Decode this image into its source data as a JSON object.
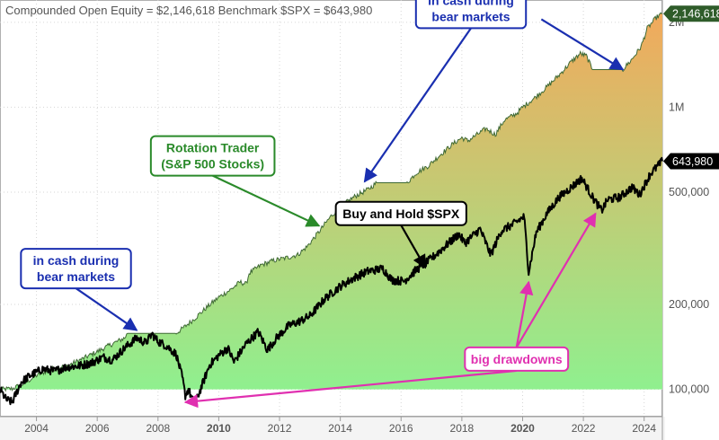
{
  "header": {
    "title": "Compounded Open Equity = $2,146,618  Benchmark $SPX = $643,980"
  },
  "chart_data": {
    "type": "area",
    "scale": "log",
    "grid": true,
    "title": "Compounded Open Equity = $2,146,618  Benchmark $SPX = $643,980",
    "xlabel": "",
    "ylabel": "",
    "xlim": [
      2002.8,
      2024.6
    ],
    "ylim": [
      80000,
      2400000
    ],
    "x_ticks": [
      {
        "value": 2004,
        "label": "2004",
        "bold": false
      },
      {
        "value": 2006,
        "label": "2006",
        "bold": false
      },
      {
        "value": 2008,
        "label": "2008",
        "bold": false
      },
      {
        "value": 2010,
        "label": "2010",
        "bold": true
      },
      {
        "value": 2012,
        "label": "2012",
        "bold": false
      },
      {
        "value": 2014,
        "label": "2014",
        "bold": false
      },
      {
        "value": 2016,
        "label": "2016",
        "bold": false
      },
      {
        "value": 2018,
        "label": "2018",
        "bold": false
      },
      {
        "value": 2020,
        "label": "2020",
        "bold": true
      },
      {
        "value": 2022,
        "label": "2022",
        "bold": false
      },
      {
        "value": 2024,
        "label": "2024",
        "bold": false
      }
    ],
    "y_ticks": [
      {
        "value": 100000,
        "label": "100,000"
      },
      {
        "value": 200000,
        "label": "200,000"
      },
      {
        "value": 500000,
        "label": "500,000"
      },
      {
        "value": 1000000,
        "label": "1M"
      },
      {
        "value": 2000000,
        "label": "2M"
      }
    ],
    "value_flags": [
      {
        "series": "equity",
        "value": 2146618,
        "label": "2,146,618",
        "bg": "#2f5c2a",
        "fg": "#ffffff"
      },
      {
        "series": "benchmark",
        "value": 643980,
        "label": "643,980",
        "bg": "#000000",
        "fg": "#ffffff"
      }
    ],
    "series": [
      {
        "id": "equity",
        "fill_top": "#f2a95c",
        "fill_bottom": "#8ff08f",
        "line_color": "#3f6a35",
        "baseline": 100000,
        "points": [
          [
            2002.8,
            100000
          ],
          [
            2003.2,
            100500
          ],
          [
            2003.6,
            105000
          ],
          [
            2004.0,
            112000
          ],
          [
            2004.5,
            118000
          ],
          [
            2005.0,
            121000
          ],
          [
            2005.5,
            128000
          ],
          [
            2006.0,
            136000
          ],
          [
            2006.5,
            145000
          ],
          [
            2006.9,
            152000
          ],
          [
            2007.0,
            158000
          ],
          [
            2008.6,
            158000
          ],
          [
            2008.8,
            164000
          ],
          [
            2009.2,
            178000
          ],
          [
            2009.6,
            195000
          ],
          [
            2010.0,
            212000
          ],
          [
            2010.4,
            226000
          ],
          [
            2010.7,
            240000
          ],
          [
            2010.9,
            236000
          ],
          [
            2011.0,
            258000
          ],
          [
            2011.4,
            276000
          ],
          [
            2011.8,
            286000
          ],
          [
            2012.2,
            292000
          ],
          [
            2012.6,
            300000
          ],
          [
            2012.9,
            320000
          ],
          [
            2013.3,
            362000
          ],
          [
            2013.7,
            412000
          ],
          [
            2014.1,
            452000
          ],
          [
            2014.5,
            485000
          ],
          [
            2014.9,
            510000
          ],
          [
            2015.2,
            540000
          ],
          [
            2015.4,
            540000
          ],
          [
            2016.2,
            540000
          ],
          [
            2016.5,
            585000
          ],
          [
            2016.9,
            620000
          ],
          [
            2017.3,
            680000
          ],
          [
            2017.7,
            740000
          ],
          [
            2018.0,
            780000
          ],
          [
            2018.2,
            760000
          ],
          [
            2018.5,
            800000
          ],
          [
            2018.8,
            840000
          ],
          [
            2019.1,
            800000
          ],
          [
            2019.4,
            900000
          ],
          [
            2019.8,
            950000
          ],
          [
            2020.0,
            1000000
          ],
          [
            2020.4,
            1080000
          ],
          [
            2020.8,
            1180000
          ],
          [
            2021.2,
            1300000
          ],
          [
            2021.6,
            1450000
          ],
          [
            2021.9,
            1550000
          ],
          [
            2022.1,
            1520000
          ],
          [
            2022.3,
            1360000
          ],
          [
            2023.3,
            1360000
          ],
          [
            2023.6,
            1480000
          ],
          [
            2023.9,
            1640000
          ],
          [
            2024.1,
            1900000
          ],
          [
            2024.4,
            2080000
          ],
          [
            2024.6,
            2146618
          ]
        ]
      },
      {
        "id": "benchmark",
        "line_color": "#000000",
        "points": [
          [
            2002.8,
            100000
          ],
          [
            2003.0,
            92000
          ],
          [
            2003.2,
            90000
          ],
          [
            2003.5,
            106000
          ],
          [
            2003.8,
            112000
          ],
          [
            2004.2,
            118000
          ],
          [
            2004.6,
            116000
          ],
          [
            2005.0,
            120000
          ],
          [
            2005.4,
            121000
          ],
          [
            2005.8,
            124000
          ],
          [
            2006.2,
            130000
          ],
          [
            2006.5,
            127000
          ],
          [
            2006.9,
            140000
          ],
          [
            2007.3,
            152000
          ],
          [
            2007.6,
            146000
          ],
          [
            2007.8,
            157000
          ],
          [
            2008.0,
            148000
          ],
          [
            2008.3,
            142000
          ],
          [
            2008.6,
            133000
          ],
          [
            2008.8,
            110000
          ],
          [
            2008.9,
            95000
          ],
          [
            2009.0,
            100000
          ],
          [
            2009.2,
            88000
          ],
          [
            2009.4,
            100000
          ],
          [
            2009.7,
            122000
          ],
          [
            2010.0,
            132000
          ],
          [
            2010.3,
            140000
          ],
          [
            2010.5,
            125000
          ],
          [
            2010.9,
            145000
          ],
          [
            2011.3,
            160000
          ],
          [
            2011.6,
            138000
          ],
          [
            2011.9,
            152000
          ],
          [
            2012.3,
            168000
          ],
          [
            2012.7,
            175000
          ],
          [
            2013.0,
            182000
          ],
          [
            2013.5,
            210000
          ],
          [
            2014.0,
            232000
          ],
          [
            2014.5,
            250000
          ],
          [
            2014.9,
            262000
          ],
          [
            2015.4,
            268000
          ],
          [
            2015.7,
            244000
          ],
          [
            2016.1,
            242000
          ],
          [
            2016.5,
            265000
          ],
          [
            2016.9,
            285000
          ],
          [
            2017.4,
            318000
          ],
          [
            2017.9,
            355000
          ],
          [
            2018.1,
            330000
          ],
          [
            2018.6,
            370000
          ],
          [
            2018.95,
            300000
          ],
          [
            2019.3,
            365000
          ],
          [
            2019.7,
            385000
          ],
          [
            2020.05,
            410000
          ],
          [
            2020.2,
            260000
          ],
          [
            2020.45,
            360000
          ],
          [
            2020.8,
            420000
          ],
          [
            2021.2,
            480000
          ],
          [
            2021.6,
            520000
          ],
          [
            2021.95,
            560000
          ],
          [
            2022.3,
            480000
          ],
          [
            2022.6,
            430000
          ],
          [
            2022.8,
            470000
          ],
          [
            2023.2,
            480000
          ],
          [
            2023.6,
            520000
          ],
          [
            2023.85,
            490000
          ],
          [
            2024.2,
            580000
          ],
          [
            2024.6,
            643980
          ]
        ]
      }
    ],
    "annotations": [
      {
        "text": [
          "in cash during",
          "bear markets"
        ],
        "border": "#1a2fb0",
        "color": "#1a2fb0",
        "box": {
          "x": 2018.3,
          "y": 2240000
        },
        "arrow_to": {
          "x": 2014.8,
          "y": 545000
        },
        "arrow_color": "#1a2fb0"
      },
      {
        "text": [
          "in cash during",
          "bear markets"
        ],
        "border": "#1a2fb0",
        "color": "#1a2fb0",
        "box": {
          "x": 2021.8,
          "y": 2240000
        },
        "arrow_to": {
          "x": 2023.3,
          "y": 1360000
        },
        "arrow_color": "#1a2fb0",
        "no_box": true
      },
      {
        "text": [
          "in cash during",
          "bear markets"
        ],
        "border": "#1a2fb0",
        "color": "#1a2fb0",
        "box": {
          "x": 2005.3,
          "y": 268000
        },
        "arrow_to": {
          "x": 2007.3,
          "y": 162000
        },
        "arrow_color": "#1a2fb0"
      },
      {
        "text": [
          "Rotation Trader",
          "(S&P 500 Stocks)"
        ],
        "border": "#2a8a2a",
        "color": "#2a8a2a",
        "box": {
          "x": 2009.8,
          "y": 672000
        },
        "arrow_to": {
          "x": 2013.3,
          "y": 380000
        },
        "arrow_color": "#2a8a2a"
      },
      {
        "text": [
          "Buy and Hold $SPX"
        ],
        "border": "#000000",
        "color": "#000000",
        "box": {
          "x": 2016.0,
          "y": 420000
        },
        "arrow_to": {
          "x": 2016.8,
          "y": 270000
        },
        "arrow_color": "#000000"
      },
      {
        "text": [
          "big drawdowns"
        ],
        "border": "#e030b0",
        "color": "#e030b0",
        "box": {
          "x": 2019.8,
          "y": 128000
        },
        "arrow_to": {
          "x": 2008.9,
          "y": 90000
        },
        "arrow_color": "#e030b0",
        "extra_arrows": [
          {
            "x": 2020.2,
            "y": 240000
          },
          {
            "x": 2022.4,
            "y": 420000
          }
        ]
      }
    ]
  }
}
